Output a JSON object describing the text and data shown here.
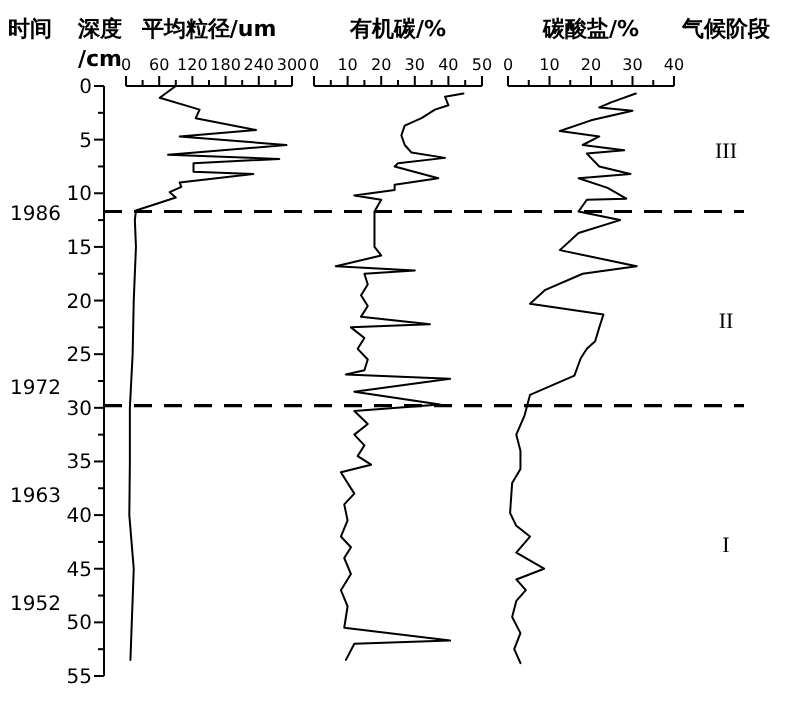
{
  "chart_data": [
    {
      "type": "line",
      "orientation": "horizontal",
      "title": "平均粒径/um",
      "ylabel": "深度/cm",
      "y2label": "时间",
      "line_style": "solid",
      "marker": "none",
      "x": [
        0,
        1.1,
        2.2,
        3.0,
        4.1,
        4.7,
        5.5,
        6.4,
        6.8,
        7.2,
        8.0,
        8.2,
        9.0,
        9.4,
        9.9,
        10.4,
        11.6,
        12.5,
        15,
        20,
        25,
        30,
        35,
        40,
        45,
        53.5
      ],
      "series": [
        {
          "color": "#000000",
          "values": [
            90,
            61,
            133,
            126,
            235,
            97,
            290,
            76,
            277,
            122,
            122,
            230,
            97,
            100,
            79,
            90,
            18,
            16,
            18,
            14,
            12,
            7,
            7,
            6,
            14,
            8
          ]
        }
      ],
      "xlim": [
        0,
        300
      ],
      "xticks": [
        0,
        {
          "value": 30,
          "label": null
        },
        60,
        {
          "value": 90,
          "label": null
        },
        120,
        {
          "value": 150,
          "label": null
        },
        180,
        {
          "value": 210,
          "label": null
        },
        240,
        {
          "value": 270,
          "label": null
        },
        300
      ],
      "ylim": [
        55,
        0
      ],
      "yticks": [
        0,
        {
          "value": 2.5,
          "label": null
        },
        5,
        {
          "value": 7.5,
          "label": null
        },
        10,
        {
          "value": 12.5,
          "label": null
        },
        15,
        {
          "value": 17.5,
          "label": null
        },
        20,
        {
          "value": 22.5,
          "label": null
        },
        25,
        {
          "value": 27.5,
          "label": null
        },
        30,
        {
          "value": 32.5,
          "label": null
        },
        35,
        {
          "value": 37.5,
          "label": null
        },
        40,
        {
          "value": 42.5,
          "label": null
        },
        45,
        {
          "value": 47.5,
          "label": null
        },
        50,
        {
          "value": 52.5,
          "label": null
        },
        55
      ],
      "annotations": [
        "1986",
        "1972",
        "1963",
        "1952"
      ],
      "ref_lines": [
        {
          "axis": "y",
          "value": 11.7,
          "line_style": "dashed"
        },
        {
          "axis": "y",
          "value": 29.8,
          "line_style": "dashed"
        }
      ]
    },
    {
      "type": "line",
      "orientation": "horizontal",
      "title": "有机碳/%",
      "tick_labels": "x",
      "line_style": "solid",
      "marker": "none",
      "x": [
        0.7,
        1.0,
        1.8,
        2.2,
        3.0,
        3.7,
        4.6,
        5.5,
        6.2,
        6.7,
        7.2,
        7.5,
        8.6,
        9.2,
        9.7,
        10.2,
        10.6,
        11.7,
        15,
        15.8,
        16.8,
        17.2,
        17.5,
        18.5,
        19.5,
        20.5,
        21.5,
        22.2,
        22.5,
        23.5,
        24.5,
        25.5,
        26.5,
        26.9,
        27.3,
        28.5,
        29.7,
        30.3,
        31.5,
        32.5,
        33.5,
        34.5,
        35.3,
        36,
        37,
        38,
        39,
        40.5,
        42,
        43,
        44,
        45.5,
        47,
        48.5,
        50.5,
        51.7,
        52,
        53.5
      ],
      "series": [
        {
          "color": "#000000",
          "values": [
            44.5,
            39,
            40,
            36,
            32,
            27,
            26,
            27,
            29,
            39,
            25,
            24,
            37,
            24,
            24,
            12,
            20,
            18,
            18,
            20,
            6.5,
            30,
            15,
            16,
            14,
            16,
            14,
            34.5,
            11,
            15,
            13,
            16,
            15,
            9.5,
            40.5,
            12,
            37.5,
            12,
            16,
            12,
            15,
            13,
            17,
            8,
            10,
            12,
            9,
            10,
            8,
            11,
            9,
            11,
            8,
            10,
            9,
            40.5,
            12,
            9.5
          ]
        }
      ],
      "xlim": [
        0,
        50
      ],
      "xticks": [
        0,
        {
          "value": 5,
          "label": null
        },
        10,
        {
          "value": 15,
          "label": null
        },
        20,
        {
          "value": 25,
          "label": null
        },
        30,
        {
          "value": 35,
          "label": null
        },
        40,
        {
          "value": 45,
          "label": null
        },
        50
      ],
      "ylim": [
        55,
        0
      ]
    },
    {
      "type": "line",
      "orientation": "horizontal",
      "title": "碳酸盐/%",
      "tick_labels": "x",
      "line_style": "solid",
      "marker": "none",
      "x": [
        0.7,
        1.5,
        2.0,
        2.3,
        3.2,
        4.2,
        4.7,
        5.5,
        6.0,
        6.3,
        7.5,
        8.2,
        8.6,
        9.5,
        10.5,
        10.6,
        11.7,
        12.5,
        13.7,
        15.3,
        16.8,
        17.5,
        19.0,
        20.3,
        21.3,
        22.5,
        23.8,
        24.5,
        25.4,
        27.0,
        28.8,
        30.7,
        32.5,
        34,
        35.7,
        37,
        39.8,
        41,
        42,
        43.5,
        45,
        46,
        47,
        48,
        49.5,
        51,
        52.5,
        53.8
      ],
      "series": [
        {
          "color": "#000000",
          "values": [
            30.8,
            25,
            22,
            30,
            20,
            12.5,
            22,
            18,
            28,
            19,
            22,
            29.5,
            17,
            24,
            28.5,
            19,
            17,
            27,
            17,
            12.5,
            31,
            18,
            9,
            5.3,
            23,
            22,
            21,
            19,
            17.5,
            16,
            5.3,
            4,
            2,
            3,
            3,
            1,
            0.5,
            2,
            5.3,
            2,
            8.7,
            2,
            4.3,
            2,
            1,
            3,
            1.5,
            3
          ]
        }
      ],
      "xlim": [
        0,
        40
      ],
      "xticks": [
        0,
        {
          "value": 5,
          "label": null
        },
        10,
        {
          "value": 15,
          "label": null
        },
        20,
        {
          "value": 25,
          "label": null
        },
        30,
        {
          "value": 35,
          "label": null
        },
        40
      ],
      "ylim": [
        55,
        0
      ],
      "annotations": [
        "气候阶段",
        "III",
        "II",
        "I"
      ]
    }
  ]
}
